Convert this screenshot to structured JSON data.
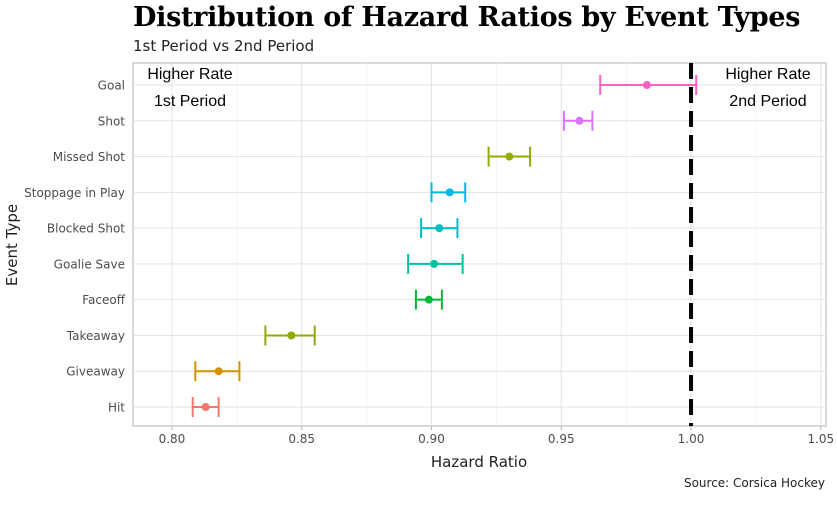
{
  "title": "Distribution of Hazard Ratios by Event Types",
  "subtitle": "1st Period vs 2nd Period",
  "caption": "Source: Corsica Hockey",
  "annotations": {
    "left_line1": "Higher Rate",
    "left_line2": "1st Period",
    "right_line1": "Higher Rate",
    "right_line2": "2nd Period"
  },
  "chart_data": {
    "type": "scatter",
    "subtype": "forest-plot with horizontal error bars",
    "xlabel": "Hazard Ratio",
    "ylabel": "Event Type",
    "xlim": [
      0.785,
      1.052
    ],
    "xticks": [
      0.8,
      0.85,
      0.9,
      0.95,
      1.0,
      1.05
    ],
    "xtick_labels": [
      "0.80",
      "0.85",
      "0.90",
      "0.95",
      "1.00",
      "1.05"
    ],
    "reference_line": 1.0,
    "grid": true,
    "legend": "none",
    "categories": [
      "Goal",
      "Shot",
      "Missed Shot",
      "Stoppage in Play",
      "Blocked Shot",
      "Goalie Save",
      "Faceoff",
      "Takeaway",
      "Giveaway",
      "Hit"
    ],
    "estimates": [
      0.983,
      0.957,
      0.93,
      0.907,
      0.903,
      0.901,
      0.899,
      0.846,
      0.818,
      0.813
    ],
    "lower": [
      0.965,
      0.951,
      0.922,
      0.9,
      0.896,
      0.891,
      0.894,
      0.836,
      0.809,
      0.808
    ],
    "upper": [
      1.002,
      0.962,
      0.938,
      0.913,
      0.91,
      0.912,
      0.904,
      0.855,
      0.826,
      0.818
    ],
    "colors": [
      "#FF61C3",
      "#DB72FB",
      "#93AA00",
      "#00B9E3",
      "#00BFC4",
      "#00C19F",
      "#00BA38",
      "#93AA00",
      "#D39200",
      "#F8766D"
    ]
  }
}
